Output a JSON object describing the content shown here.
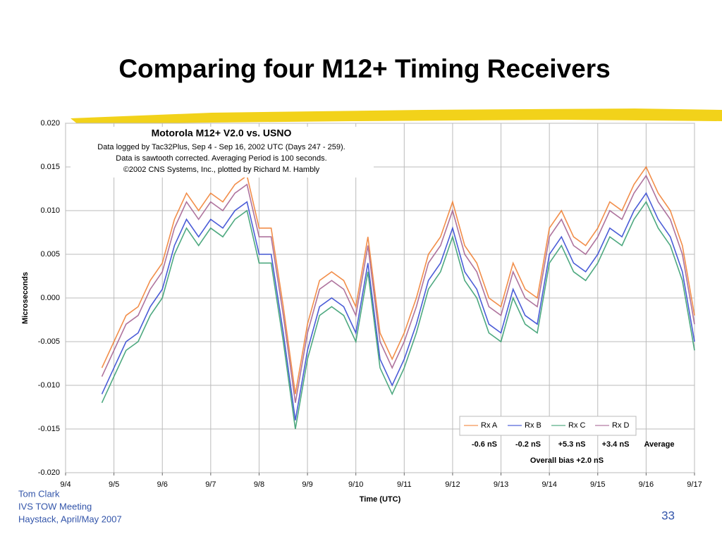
{
  "slide": {
    "title": "Comparing four M12+ Timing Receivers",
    "footer": [
      "Tom Clark",
      "IVS TOW Meeting",
      "Haystack, April/May 2007"
    ],
    "page": "33"
  },
  "chart_data": {
    "type": "line",
    "title": "Motorola M12+ V2.0 vs. USNO",
    "subtitle": [
      "Data logged by Tac32Plus, Sep 4 - Sep 16, 2002 UTC (Days 247 - 259).",
      "Data is sawtooth corrected. Averaging Period is 100 seconds.",
      "©2002 CNS Systems, Inc., plotted by Richard M. Hambly"
    ],
    "xlabel": "Time (UTC)",
    "ylabel": "Microseconds",
    "x": [
      247.75,
      248,
      248.25,
      248.5,
      248.75,
      249,
      249.25,
      249.5,
      249.75,
      250,
      250.25,
      250.5,
      250.75,
      251,
      251.25,
      251.5,
      251.75,
      252,
      252.25,
      252.5,
      252.75,
      253,
      253.25,
      253.5,
      253.75,
      254,
      254.25,
      254.5,
      254.75,
      255,
      255.25,
      255.5,
      255.75,
      256,
      256.25,
      256.5,
      256.75,
      257,
      257.25,
      257.5,
      257.75,
      258,
      258.25,
      258.5,
      258.75,
      259,
      259.25,
      259.5,
      259.75,
      260
    ],
    "xlim": [
      247,
      260
    ],
    "xticks": [
      {
        "value": 247,
        "label": "9/4"
      },
      {
        "value": 248,
        "label": "9/5"
      },
      {
        "value": 249,
        "label": "9/6"
      },
      {
        "value": 250,
        "label": "9/7"
      },
      {
        "value": 251,
        "label": "9/8"
      },
      {
        "value": 252,
        "label": "9/9"
      },
      {
        "value": 253,
        "label": "9/10"
      },
      {
        "value": 254,
        "label": "9/11"
      },
      {
        "value": 255,
        "label": "9/12"
      },
      {
        "value": 256,
        "label": "9/13"
      },
      {
        "value": 257,
        "label": "9/14"
      },
      {
        "value": 258,
        "label": "9/15"
      },
      {
        "value": 259,
        "label": "9/16"
      },
      {
        "value": 260,
        "label": "9/17"
      }
    ],
    "ylim": [
      -0.02,
      0.02
    ],
    "yticks": [
      {
        "value": -0.02,
        "label": "-0.020"
      },
      {
        "value": -0.015,
        "label": "-0.015"
      },
      {
        "value": -0.01,
        "label": "-0.010"
      },
      {
        "value": -0.005,
        "label": "-0.005"
      },
      {
        "value": 0,
        "label": "0.000"
      },
      {
        "value": 0.005,
        "label": "0.005"
      },
      {
        "value": 0.01,
        "label": "0.010"
      },
      {
        "value": 0.015,
        "label": "0.015"
      },
      {
        "value": 0.02,
        "label": "0.020"
      }
    ],
    "grid": true,
    "legend": "lower right",
    "series": [
      {
        "name": "Rx A",
        "color": "#f07a2a",
        "values": [
          -0.008,
          -0.005,
          -0.002,
          -0.001,
          0.002,
          0.004,
          0.009,
          0.012,
          0.01,
          0.012,
          0.011,
          0.013,
          0.014,
          0.008,
          0.008,
          -0.001,
          -0.011,
          -0.003,
          0.002,
          0.003,
          0.002,
          -0.001,
          0.007,
          -0.004,
          -0.007,
          -0.004,
          0.0,
          0.005,
          0.007,
          0.011,
          0.006,
          0.004,
          0.0,
          -0.001,
          0.004,
          0.001,
          0.0,
          0.008,
          0.01,
          0.007,
          0.006,
          0.008,
          0.011,
          0.01,
          0.013,
          0.015,
          0.012,
          0.01,
          0.006,
          -0.002
        ]
      },
      {
        "name": "Rx B",
        "color": "#2a3fd0",
        "values": [
          -0.011,
          -0.008,
          -0.005,
          -0.004,
          -0.001,
          0.001,
          0.006,
          0.009,
          0.007,
          0.009,
          0.008,
          0.01,
          0.011,
          0.005,
          0.005,
          -0.004,
          -0.014,
          -0.006,
          -0.001,
          0.0,
          -0.001,
          -0.004,
          0.004,
          -0.007,
          -0.01,
          -0.007,
          -0.003,
          0.002,
          0.004,
          0.008,
          0.003,
          0.001,
          -0.003,
          -0.004,
          0.001,
          -0.002,
          -0.003,
          0.005,
          0.007,
          0.004,
          0.003,
          0.005,
          0.008,
          0.007,
          0.01,
          0.012,
          0.009,
          0.007,
          0.003,
          -0.005
        ]
      },
      {
        "name": "Rx C",
        "color": "#2f9a6a",
        "values": [
          -0.012,
          -0.009,
          -0.006,
          -0.005,
          -0.002,
          0.0,
          0.005,
          0.008,
          0.006,
          0.008,
          0.007,
          0.009,
          0.01,
          0.004,
          0.004,
          -0.005,
          -0.015,
          -0.007,
          -0.002,
          -0.001,
          -0.002,
          -0.005,
          0.003,
          -0.008,
          -0.011,
          -0.008,
          -0.004,
          0.001,
          0.003,
          0.007,
          0.002,
          0.0,
          -0.004,
          -0.005,
          0.0,
          -0.003,
          -0.004,
          0.004,
          0.006,
          0.003,
          0.002,
          0.004,
          0.007,
          0.006,
          0.009,
          0.011,
          0.008,
          0.006,
          0.002,
          -0.006
        ]
      },
      {
        "name": "Rx D",
        "color": "#a05a8c",
        "values": [
          -0.009,
          -0.006,
          -0.003,
          -0.002,
          0.001,
          0.003,
          0.008,
          0.011,
          0.009,
          0.011,
          0.01,
          0.012,
          0.013,
          0.007,
          0.007,
          -0.002,
          -0.012,
          -0.004,
          0.001,
          0.002,
          0.001,
          -0.002,
          0.006,
          -0.005,
          -0.008,
          -0.005,
          -0.001,
          0.004,
          0.006,
          0.01,
          0.005,
          0.003,
          -0.001,
          -0.002,
          0.003,
          0.0,
          -0.001,
          0.007,
          0.009,
          0.006,
          0.005,
          0.007,
          0.01,
          0.009,
          0.012,
          0.014,
          0.011,
          0.009,
          0.005,
          -0.003
        ]
      }
    ],
    "annotations": {
      "biases": [
        "-0.6 nS",
        "-0.2 nS",
        "+5.3 nS",
        "+3.4 nS"
      ],
      "average_label": "Average",
      "overall": "Overall bias +2.0 nS"
    }
  }
}
